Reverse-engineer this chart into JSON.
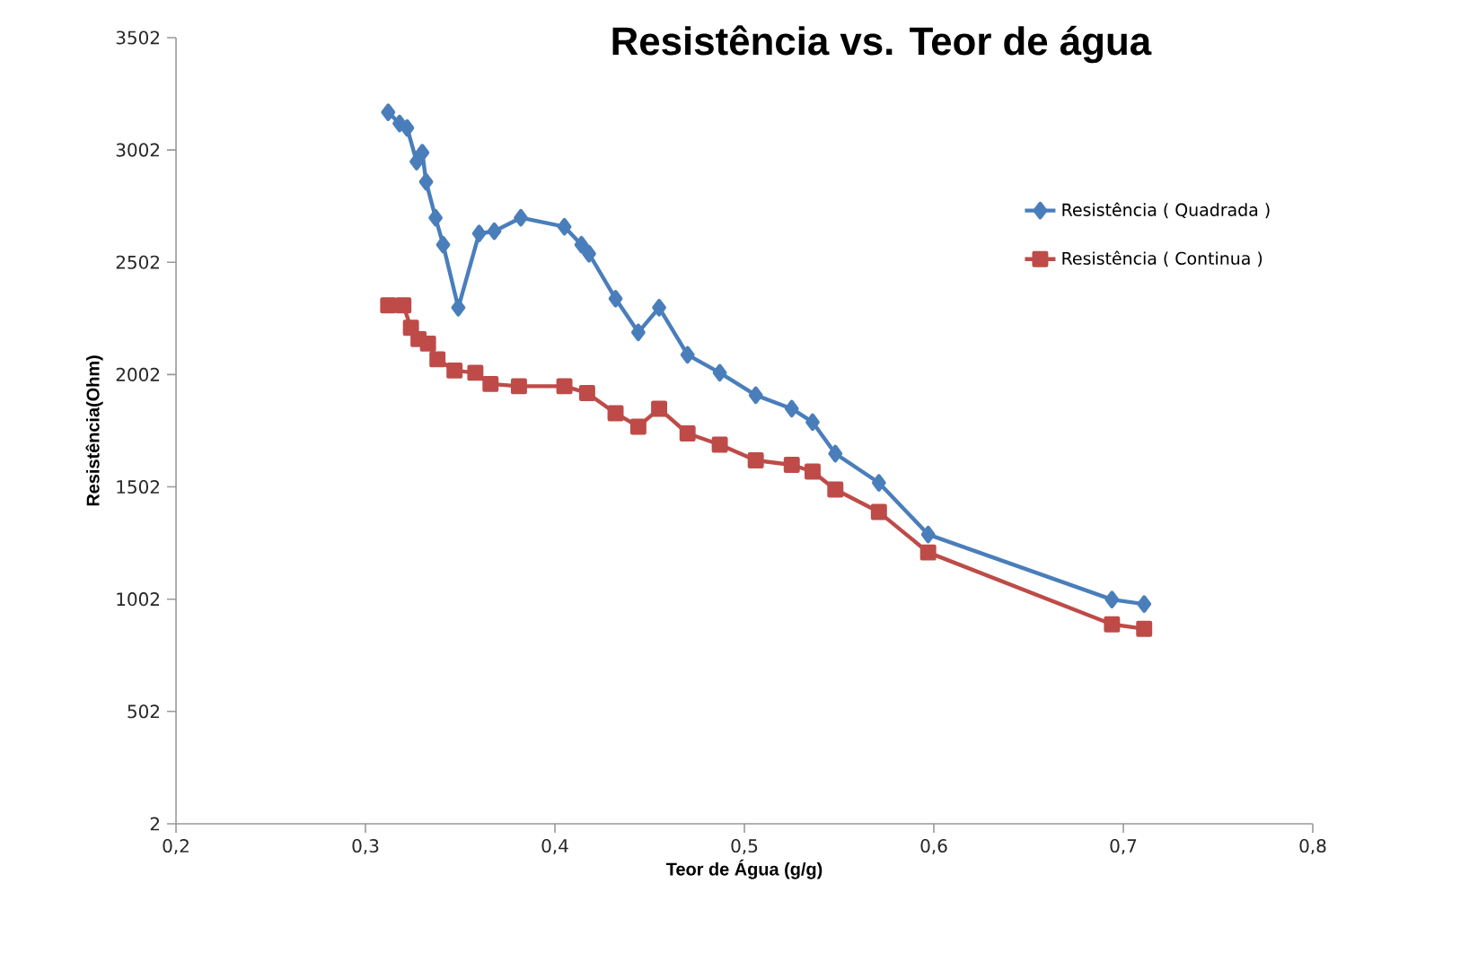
{
  "chart_data": {
    "type": "line",
    "title": "Resistência vs. Teor de água",
    "xlabel": "Teor de Água (g/g)",
    "ylabel": "Resistência(Ohm)",
    "xlim": [
      0.2,
      0.8
    ],
    "ylim": [
      2,
      3502
    ],
    "xticks": [
      {
        "value": 0.2,
        "label": "0,2"
      },
      {
        "value": 0.3,
        "label": "0,3"
      },
      {
        "value": 0.4,
        "label": "0,4"
      },
      {
        "value": 0.5,
        "label": "0,5"
      },
      {
        "value": 0.6,
        "label": "0,6"
      },
      {
        "value": 0.7,
        "label": "0,7"
      },
      {
        "value": 0.8,
        "label": "0,8"
      }
    ],
    "yticks": [
      2,
      502,
      1002,
      1502,
      2002,
      2502,
      3002,
      3502
    ],
    "grid": false,
    "legend": "right",
    "line_style": "solid",
    "series": [
      {
        "name": "Resistência  ( Quadrada )",
        "color": "#4a7ebb",
        "marker": "diamond",
        "x": [
          0.312,
          0.318,
          0.322,
          0.327,
          0.33,
          0.332,
          0.337,
          0.341,
          0.349,
          0.36,
          0.368,
          0.382,
          0.405,
          0.414,
          0.418,
          0.432,
          0.444,
          0.455,
          0.47,
          0.487,
          0.506,
          0.525,
          0.536,
          0.548,
          0.571,
          0.597,
          0.694,
          0.711
        ],
        "values": [
          3170,
          3120,
          3100,
          2950,
          2990,
          2860,
          2700,
          2580,
          2300,
          2630,
          2640,
          2700,
          2660,
          2580,
          2540,
          2340,
          2190,
          2300,
          2090,
          2010,
          1910,
          1850,
          1790,
          1650,
          1520,
          1290,
          1000,
          980
        ]
      },
      {
        "name": "Resistência  ( Continua )",
        "color": "#be4b48",
        "marker": "square",
        "x": [
          0.312,
          0.32,
          0.324,
          0.328,
          0.333,
          0.338,
          0.347,
          0.358,
          0.366,
          0.381,
          0.405,
          0.417,
          0.432,
          0.444,
          0.455,
          0.47,
          0.487,
          0.506,
          0.525,
          0.536,
          0.548,
          0.571,
          0.597,
          0.694,
          0.711
        ],
        "values": [
          2310,
          2310,
          2210,
          2160,
          2140,
          2070,
          2020,
          2010,
          1960,
          1950,
          1950,
          1920,
          1830,
          1770,
          1850,
          1740,
          1690,
          1620,
          1600,
          1570,
          1490,
          1390,
          1210,
          890,
          870
        ]
      }
    ]
  }
}
